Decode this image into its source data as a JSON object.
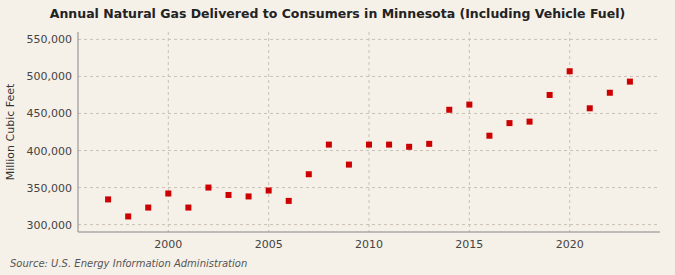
{
  "chart_data": {
    "type": "scatter",
    "title": "Annual Natural Gas Delivered to Consumers in Minnesota (Including Vehicle Fuel)",
    "ylabel": "Million Cubic Feet",
    "annotations": [
      "Source: U.S. Energy Information Administration"
    ],
    "x": [
      1997,
      1998,
      1999,
      2000,
      2001,
      2002,
      2003,
      2004,
      2005,
      2006,
      2007,
      2008,
      2009,
      2010,
      2011,
      2012,
      2013,
      2014,
      2015,
      2016,
      2017,
      2018,
      2019,
      2020,
      2021,
      2022,
      2023
    ],
    "values": [
      334000,
      311000,
      323000,
      342000,
      323000,
      350000,
      340000,
      338000,
      346000,
      332000,
      368000,
      408000,
      381000,
      408000,
      408000,
      405000,
      409000,
      455000,
      462000,
      420000,
      437000,
      439000,
      475000,
      507000,
      457000,
      478000,
      493000
    ],
    "color": "#cc0000",
    "marker": "square",
    "xlim": [
      1995.5,
      2024.5
    ],
    "xticks": [
      2000,
      2005,
      2010,
      2015,
      2020
    ],
    "ylim": [
      290000,
      560000
    ],
    "yticks": [
      {
        "value": 300000,
        "label": "300,000"
      },
      {
        "value": 350000,
        "label": "350,000"
      },
      {
        "value": 400000,
        "label": "400,000"
      },
      {
        "value": 450000,
        "label": "450,000"
      },
      {
        "value": 500000,
        "label": "500,000"
      },
      {
        "value": 550000,
        "label": "550,000"
      }
    ],
    "grid": true
  }
}
